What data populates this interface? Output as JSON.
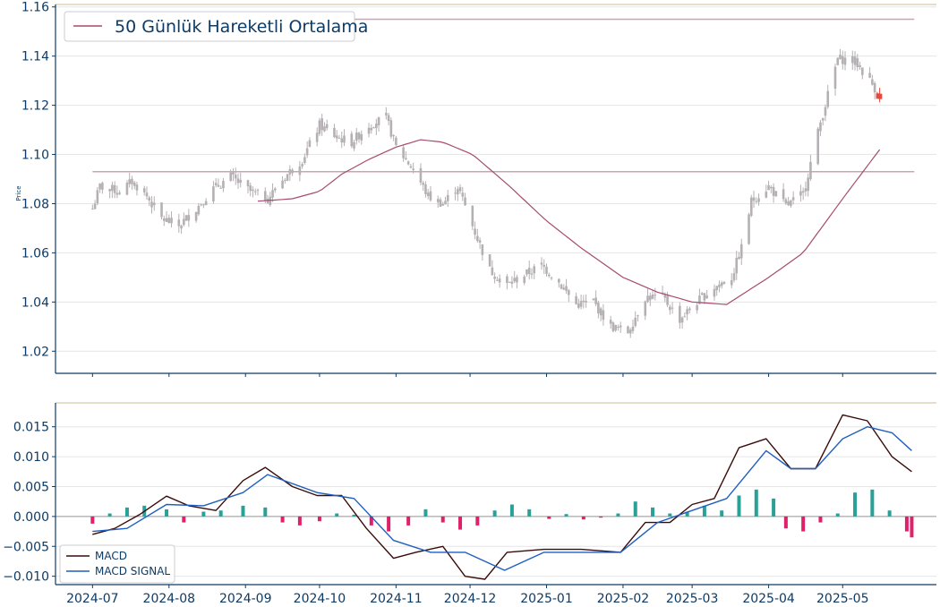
{
  "colors": {
    "axis": "#0d3b66",
    "top_border": "#d8c9a8",
    "grid": "#e6e6e6",
    "candle": "#b5b0b3",
    "last_candle": "#e8473c",
    "sma": "#a74a6f",
    "hline": "#c9a5b0",
    "macd": "#3a0b0b",
    "signal": "#1f5fbf",
    "hist_pos": "#2aa198",
    "hist_neg": "#e0206a"
  },
  "chart_data": [
    {
      "type": "candlestick",
      "ylabel": "Price",
      "ylim": [
        1.011,
        1.161
      ],
      "y_ticks": [
        "1.02",
        "1.04",
        "1.06",
        "1.08",
        "1.10",
        "1.12",
        "1.14",
        "1.16"
      ],
      "x_ticks": [
        "2024-07",
        "2024-08",
        "2024-09",
        "2024-10",
        "2024-11",
        "2024-12",
        "2025-01",
        "2025-02",
        "2025-03",
        "2025-04",
        "2025-05"
      ],
      "legend": {
        "label": "50 Günlük Hareketli Ortalama",
        "position": "top-left"
      },
      "horizontal_lines": [
        1.093,
        1.155
      ],
      "close_anchors": [
        [
          "2024-07-01",
          1.078
        ],
        [
          "2024-07-04",
          1.087
        ],
        [
          "2024-07-12",
          1.085
        ],
        [
          "2024-07-17",
          1.089
        ],
        [
          "2024-07-23",
          1.083
        ],
        [
          "2024-07-29",
          1.074
        ],
        [
          "2024-08-05",
          1.071
        ],
        [
          "2024-08-12",
          1.078
        ],
        [
          "2024-08-19",
          1.086
        ],
        [
          "2024-08-26",
          1.091
        ],
        [
          "2024-09-03",
          1.085
        ],
        [
          "2024-09-10",
          1.082
        ],
        [
          "2024-09-17",
          1.091
        ],
        [
          "2024-09-24",
          1.098
        ],
        [
          "2024-10-01",
          1.112
        ],
        [
          "2024-10-08",
          1.107
        ],
        [
          "2024-10-14",
          1.105
        ],
        [
          "2024-10-21",
          1.112
        ],
        [
          "2024-10-28",
          1.115
        ],
        [
          "2024-11-01",
          1.103
        ],
        [
          "2024-11-08",
          1.094
        ],
        [
          "2024-11-14",
          1.083
        ],
        [
          "2024-11-20",
          1.08
        ],
        [
          "2024-11-26",
          1.087
        ],
        [
          "2024-12-02",
          1.071
        ],
        [
          "2024-12-09",
          1.053
        ],
        [
          "2024-12-16",
          1.047
        ],
        [
          "2024-12-23",
          1.051
        ],
        [
          "2024-12-30",
          1.055
        ],
        [
          "2025-01-06",
          1.048
        ],
        [
          "2025-01-13",
          1.039
        ],
        [
          "2025-01-20",
          1.04
        ],
        [
          "2025-01-27",
          1.03
        ],
        [
          "2025-02-03",
          1.028
        ],
        [
          "2025-02-10",
          1.042
        ],
        [
          "2025-02-17",
          1.042
        ],
        [
          "2025-02-24",
          1.033
        ],
        [
          "2025-03-03",
          1.04
        ],
        [
          "2025-03-10",
          1.046
        ],
        [
          "2025-03-17",
          1.05
        ],
        [
          "2025-03-21",
          1.062
        ],
        [
          "2025-03-25",
          1.081
        ],
        [
          "2025-04-01",
          1.087
        ],
        [
          "2025-04-08",
          1.079
        ],
        [
          "2025-04-15",
          1.084
        ],
        [
          "2025-04-22",
          1.113
        ],
        [
          "2025-04-29",
          1.139
        ],
        [
          "2025-05-06",
          1.138
        ],
        [
          "2025-05-12",
          1.13
        ],
        [
          "2025-05-16",
          1.124
        ]
      ],
      "sma_anchors": [
        [
          "2024-09-06",
          1.081
        ],
        [
          "2024-09-20",
          1.082
        ],
        [
          "2024-10-01",
          1.085
        ],
        [
          "2024-10-10",
          1.092
        ],
        [
          "2024-10-21",
          1.098
        ],
        [
          "2024-11-01",
          1.103
        ],
        [
          "2024-11-11",
          1.106
        ],
        [
          "2024-11-20",
          1.105
        ],
        [
          "2024-12-02",
          1.1
        ],
        [
          "2024-12-16",
          1.088
        ],
        [
          "2025-01-01",
          1.073
        ],
        [
          "2025-01-15",
          1.062
        ],
        [
          "2025-02-01",
          1.05
        ],
        [
          "2025-02-15",
          1.044
        ],
        [
          "2025-03-01",
          1.04
        ],
        [
          "2025-03-15",
          1.039
        ],
        [
          "2025-04-01",
          1.05
        ],
        [
          "2025-04-15",
          1.06
        ],
        [
          "2025-05-01",
          1.082
        ],
        [
          "2025-05-16",
          1.102
        ]
      ]
    },
    {
      "type": "line",
      "ylim": [
        -0.0114,
        0.019
      ],
      "y_ticks": [
        "−0.010",
        "−0.005",
        "0.000",
        "0.005",
        "0.010",
        "0.015"
      ],
      "x_ticks": [
        "2024-07",
        "2024-08",
        "2024-09",
        "2024-10",
        "2024-11",
        "2024-12",
        "2025-01",
        "2025-02",
        "2025-03",
        "2025-04",
        "2025-05"
      ],
      "legend": {
        "position": "bottom-left"
      },
      "series": [
        {
          "name": "MACD",
          "points": [
            [
              "2024-07-01",
              -0.003
            ],
            [
              "2024-07-10",
              -0.002
            ],
            [
              "2024-07-20",
              0.0003
            ],
            [
              "2024-07-31",
              0.0034
            ],
            [
              "2024-08-09",
              0.0018
            ],
            [
              "2024-08-20",
              0.001
            ],
            [
              "2024-08-31",
              0.006
            ],
            [
              "2024-09-09",
              0.0082
            ],
            [
              "2024-09-20",
              0.005
            ],
            [
              "2024-09-30",
              0.0035
            ],
            [
              "2024-10-10",
              0.0035
            ],
            [
              "2024-10-20",
              -0.002
            ],
            [
              "2024-10-31",
              -0.007
            ],
            [
              "2024-11-09",
              -0.006
            ],
            [
              "2024-11-20",
              -0.005
            ],
            [
              "2024-11-29",
              -0.01
            ],
            [
              "2024-12-07",
              -0.0105
            ],
            [
              "2024-12-16",
              -0.006
            ],
            [
              "2024-12-31",
              -0.0055
            ],
            [
              "2025-01-15",
              -0.0055
            ],
            [
              "2025-01-31",
              -0.006
            ],
            [
              "2025-02-10",
              -0.001
            ],
            [
              "2025-02-20",
              -0.001
            ],
            [
              "2025-03-01",
              0.002
            ],
            [
              "2025-03-10",
              0.003
            ],
            [
              "2025-03-20",
              0.0115
            ],
            [
              "2025-03-31",
              0.013
            ],
            [
              "2025-04-10",
              0.008
            ],
            [
              "2025-04-20",
              0.008
            ],
            [
              "2025-05-01",
              0.017
            ],
            [
              "2025-05-11",
              0.016
            ],
            [
              "2025-05-21",
              0.01
            ],
            [
              "2025-05-29",
              0.0075
            ]
          ]
        },
        {
          "name": "MACD SIGNAL",
          "points": [
            [
              "2024-07-01",
              -0.0025
            ],
            [
              "2024-07-15",
              -0.002
            ],
            [
              "2024-07-31",
              0.002
            ],
            [
              "2024-08-15",
              0.0018
            ],
            [
              "2024-08-31",
              0.004
            ],
            [
              "2024-09-10",
              0.007
            ],
            [
              "2024-09-30",
              0.004
            ],
            [
              "2024-10-15",
              0.003
            ],
            [
              "2024-10-31",
              -0.004
            ],
            [
              "2024-11-15",
              -0.006
            ],
            [
              "2024-11-29",
              -0.006
            ],
            [
              "2024-12-15",
              -0.009
            ],
            [
              "2024-12-31",
              -0.006
            ],
            [
              "2025-01-15",
              -0.006
            ],
            [
              "2025-01-31",
              -0.006
            ],
            [
              "2025-02-15",
              -0.001
            ],
            [
              "2025-03-01",
              0.001
            ],
            [
              "2025-03-15",
              0.003
            ],
            [
              "2025-03-31",
              0.011
            ],
            [
              "2025-04-10",
              0.008
            ],
            [
              "2025-04-20",
              0.008
            ],
            [
              "2025-05-01",
              0.013
            ],
            [
              "2025-05-11",
              0.015
            ],
            [
              "2025-05-21",
              0.014
            ],
            [
              "2025-05-29",
              0.011
            ]
          ]
        }
      ],
      "histogram": [
        [
          "2024-07-01",
          -0.0012
        ],
        [
          "2024-07-08",
          0.0005
        ],
        [
          "2024-07-15",
          0.0015
        ],
        [
          "2024-07-22",
          0.0018
        ],
        [
          "2024-07-31",
          0.0012
        ],
        [
          "2024-08-07",
          -0.001
        ],
        [
          "2024-08-15",
          0.0008
        ],
        [
          "2024-08-22",
          0.001
        ],
        [
          "2024-08-31",
          0.0018
        ],
        [
          "2024-09-09",
          0.0015
        ],
        [
          "2024-09-16",
          -0.001
        ],
        [
          "2024-09-23",
          -0.0015
        ],
        [
          "2024-10-01",
          -0.0008
        ],
        [
          "2024-10-08",
          0.0005
        ],
        [
          "2024-10-15",
          0.0003
        ],
        [
          "2024-10-22",
          -0.0015
        ],
        [
          "2024-10-29",
          -0.0025
        ],
        [
          "2024-11-06",
          -0.0015
        ],
        [
          "2024-11-13",
          0.0012
        ],
        [
          "2024-11-20",
          -0.001
        ],
        [
          "2024-11-27",
          -0.0022
        ],
        [
          "2024-12-04",
          -0.0015
        ],
        [
          "2024-12-11",
          0.001
        ],
        [
          "2024-12-18",
          0.002
        ],
        [
          "2024-12-25",
          0.0012
        ],
        [
          "2025-01-02",
          -0.0004
        ],
        [
          "2025-01-09",
          0.0004
        ],
        [
          "2025-01-16",
          -0.0005
        ],
        [
          "2025-01-23",
          -0.0002
        ],
        [
          "2025-01-30",
          0.0005
        ],
        [
          "2025-02-06",
          0.0025
        ],
        [
          "2025-02-13",
          0.0015
        ],
        [
          "2025-02-20",
          0.0005
        ],
        [
          "2025-02-27",
          0.0008
        ],
        [
          "2025-03-06",
          0.0018
        ],
        [
          "2025-03-13",
          0.001
        ],
        [
          "2025-03-20",
          0.0035
        ],
        [
          "2025-03-27",
          0.0045
        ],
        [
          "2025-04-03",
          0.003
        ],
        [
          "2025-04-08",
          -0.002
        ],
        [
          "2025-04-15",
          -0.0025
        ],
        [
          "2025-04-22",
          -0.001
        ],
        [
          "2025-04-29",
          0.0005
        ],
        [
          "2025-05-06",
          0.004
        ],
        [
          "2025-05-13",
          0.0045
        ],
        [
          "2025-05-20",
          0.001
        ],
        [
          "2025-05-27",
          -0.0025
        ],
        [
          "2025-05-29",
          -0.0035
        ]
      ]
    }
  ]
}
